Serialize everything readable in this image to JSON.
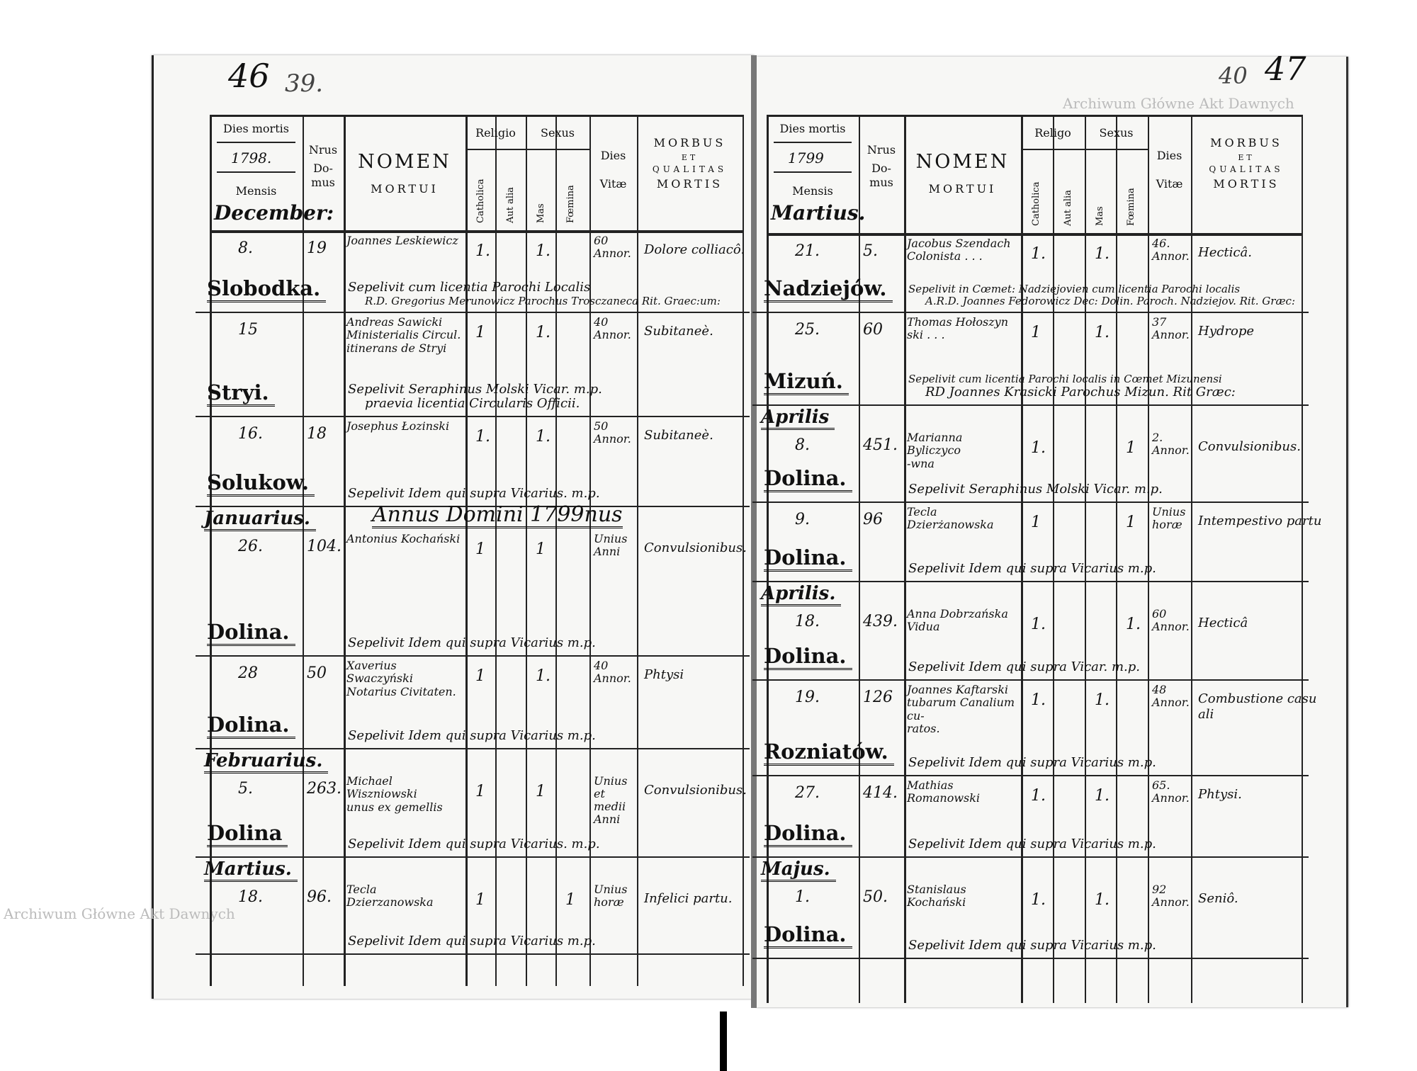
{
  "watermark": "Archiwum Główne Akt Dawnych",
  "header": {
    "dies_mortis": "Dies mortis",
    "mensis": "Mensis",
    "nrus": "Nrus",
    "domus": "Do- mus",
    "nomen": "NOMEN",
    "mortui": "MORTUI",
    "sexus": "Sexus",
    "catholica": "Catholica",
    "aut_alia": "Aut alia",
    "mas": "Mas",
    "foemina": "Fœmina",
    "dies": "Dies",
    "vitae": "Vitæ",
    "morbus": "MORBUS",
    "et": "ET",
    "qualitas": "QUALITAS",
    "mortis": "MORTIS"
  },
  "left_page": {
    "page_number": "46",
    "old_page_number": "39.",
    "year": "1798.",
    "month": "December:",
    "religio": "Religio",
    "year_heading": "Annus Domini 1799nus",
    "entries": [
      {
        "day": "8.",
        "place": "Slobodka.",
        "house": "19",
        "name": [
          "Joannes Leskiewicz"
        ],
        "catholica": "1.",
        "mas": "1.",
        "age": [
          "60",
          "Annor."
        ],
        "cause": [
          "Dolore colliacô."
        ],
        "burial": [
          "Sepelivit cum licentia Parochi Localis",
          "R.D. Gregorius Merunowicz Parochus Trosczaneca Rit. Graec:um:"
        ]
      },
      {
        "day": "15",
        "place": "Stryi.",
        "house": "",
        "name": [
          "Andreas Sawicki",
          "Ministerialis Circul.",
          "itinerans de Stryi"
        ],
        "catholica": "1",
        "mas": "1.",
        "age": [
          "40",
          "Annor."
        ],
        "cause": [
          "Subitaneè."
        ],
        "burial": [
          "Sepelivit Seraphinus Molski Vicar. m.p.",
          "praevia licentia Circularis Officii."
        ]
      },
      {
        "day": "16.",
        "place": "Solukow.",
        "house": "18",
        "name": [
          "Josephus Łozinski"
        ],
        "catholica": "1.",
        "mas": "1.",
        "age": [
          "50",
          "Annor."
        ],
        "cause": [
          "Subitaneè."
        ],
        "burial": [
          "Sepelivit Idem qui supra Vicarius. m.p."
        ]
      },
      {
        "month": "Januarius.",
        "day": "26.",
        "place": "Dolina.",
        "house": "104.",
        "name": [
          "Antonius Kochański"
        ],
        "catholica": "1",
        "mas": "1",
        "age": [
          "Unius",
          "Anni"
        ],
        "cause": [
          "Convulsionibus."
        ],
        "burial": [
          "Sepelivit Idem qui supra Vicarius m.p."
        ]
      },
      {
        "day": "28",
        "place": "Dolina.",
        "house": "50",
        "name": [
          "Xaverius Swaczyński",
          "Notarius Civitaten."
        ],
        "catholica": "1",
        "mas": "1.",
        "age": [
          "40",
          "Annor."
        ],
        "cause": [
          "Phtysi"
        ],
        "burial": [
          "Sepelivit Idem qui supra Vicarius m.p."
        ]
      },
      {
        "month": "Februarius.",
        "day": "5.",
        "place": "Dolina",
        "house": "263.",
        "name": [
          "Michael Wiszniowski",
          "unus ex gemellis"
        ],
        "catholica": "1",
        "mas": "1",
        "age": [
          "Unius",
          "et",
          "medii",
          "Anni"
        ],
        "cause": [
          "Convulsionibus."
        ],
        "burial": [
          "Sepelivit Idem qui supra Vicarius. m.p."
        ]
      },
      {
        "month": "Martius.",
        "day": "18.",
        "place": "",
        "house": "96.",
        "name": [
          "Tecla Dzierzanowska"
        ],
        "catholica": "1",
        "foemina": "1",
        "age": [
          "Unius",
          "horæ"
        ],
        "cause": [
          "Infelici partu."
        ],
        "burial": [
          "Sepelivit Idem qui supra Vicarius m.p."
        ]
      }
    ]
  },
  "right_page": {
    "page_number": "47",
    "old_page_number": "40",
    "year": "1799",
    "month": "Martius.",
    "religio": "Religo",
    "entries": [
      {
        "day": "21.",
        "place": "Nadziejów.",
        "house": "5.",
        "name": [
          "Jacobus Szendach",
          "Colonista . . ."
        ],
        "catholica": "1.",
        "mas": "1.",
        "age": [
          "46.",
          "Annor."
        ],
        "cause": [
          "Hecticâ."
        ],
        "burial": [
          "Sepelivit in Cœmet: Nadziejovien cum licentia Parochi localis",
          "A.R.D. Joannes Fedorowicz Dec: Dolin. Paroch. Nadziejov. Rit. Græc:"
        ]
      },
      {
        "day": "25.",
        "place": "Mizuń.",
        "house": "60",
        "name": [
          "Thomas Hołoszyn",
          "ski . . ."
        ],
        "catholica": "1",
        "mas": "1.",
        "age": [
          "37",
          "Annor."
        ],
        "cause": [
          "Hydrope"
        ],
        "burial": [
          "Sepelivit cum licentia Parochi localis in Cœmet Mizunensi",
          "RD Joannes Krasicki Parochus Mizun. Rit Græc:"
        ]
      },
      {
        "month": "Aprilis",
        "day": "8.",
        "place": "Dolina.",
        "house": "451.",
        "name": [
          "Marianna Byliczyco",
          "-wna"
        ],
        "catholica": "1.",
        "foemina": "1",
        "age": [
          "2.",
          "Annor."
        ],
        "cause": [
          "Convulsionibus."
        ],
        "burial": [
          "Sepelivit Seraphinus Molski Vicar. m.p."
        ]
      },
      {
        "day": "9.",
        "place": "Dolina.",
        "house": "96",
        "name": [
          "Tecla Dzierżanowska"
        ],
        "catholica": "1",
        "foemina": "1",
        "age": [
          "Unius",
          "horæ"
        ],
        "cause": [
          "Intempestivo partu"
        ],
        "burial": [
          "Sepelivit Idem qui supra Vicarius m.p."
        ]
      },
      {
        "month": "Aprilis.",
        "day": "18.",
        "place": "Dolina.",
        "house": "439.",
        "name": [
          "Anna Dobrzańska Vidua"
        ],
        "catholica": "1.",
        "foemina": "1.",
        "age": [
          "60",
          "Annor."
        ],
        "cause": [
          "Hecticâ"
        ],
        "burial": [
          "Sepelivit Idem qui supra Vicar. m.p."
        ]
      },
      {
        "day": "19.",
        "place": "Rozniatów.",
        "house": "126",
        "name": [
          "Joannes Kaftarski",
          "tubarum Canalium cu-",
          "ratos."
        ],
        "catholica": "1.",
        "mas": "1.",
        "age": [
          "48",
          "Annor."
        ],
        "cause": [
          "Combustione casu",
          "ali"
        ],
        "burial": [
          "Sepelivit Idem qui supra Vicarius m.p."
        ]
      },
      {
        "day": "27.",
        "place": "Dolina.",
        "house": "414.",
        "name": [
          "Mathias Romanowski"
        ],
        "catholica": "1.",
        "mas": "1.",
        "age": [
          "65.",
          "Annor."
        ],
        "cause": [
          "Phtysi."
        ],
        "burial": [
          "Sepelivit Idem qui supra Vicarius m.p."
        ]
      },
      {
        "month": "Majus.",
        "day": "1.",
        "place": "Dolina.",
        "house": "50.",
        "name": [
          "Stanislaus Kochański"
        ],
        "catholica": "1.",
        "mas": "1.",
        "age": [
          "92",
          "Annor."
        ],
        "cause": [
          "Seniô."
        ],
        "burial": [
          "Sepelivit Idem qui supra Vicarius m.p."
        ]
      }
    ]
  }
}
